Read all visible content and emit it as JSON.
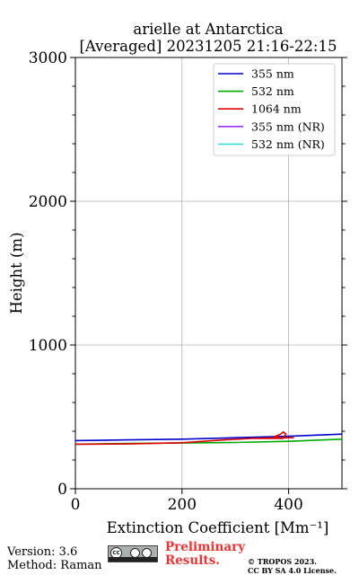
{
  "title": {
    "line1": "arielle at Antarctica",
    "line2": "[Averaged] 20231205 21:16-22:15"
  },
  "footer": {
    "version": "Version: 3.6",
    "method": "Method: Raman",
    "preliminary_line1": "Preliminary",
    "preliminary_line2": "Results.",
    "copyright_line1": "© TROPOS 2023.",
    "copyright_line2": "CC BY SA 4.0 License.",
    "license_badge": "cc-by-sa-icon",
    "preliminary_color": "#f03232"
  },
  "chart_data": {
    "type": "line",
    "title": "arielle at Antarctica [Averaged] 20231205 21:16-22:15",
    "xlabel": "Extinction Coefficient [Mm⁻¹]",
    "ylabel": "Height (m)",
    "xlim": [
      0,
      500
    ],
    "ylim": [
      0,
      3000
    ],
    "xticks": [
      "0",
      "200",
      "400"
    ],
    "yticks": [
      "0",
      "1000",
      "2000",
      "3000"
    ],
    "grid": true,
    "legend_position": "top-right",
    "series": [
      {
        "name": "355 nm",
        "color": "#0000cc",
        "x": [
          0,
          100,
          200,
          300,
          400,
          500
        ],
        "y": [
          335,
          340,
          345,
          355,
          365,
          380
        ]
      },
      {
        "name": "532 nm",
        "color": "#00aa00",
        "x": [
          0,
          100,
          200,
          300,
          400,
          500
        ],
        "y": [
          310,
          315,
          318,
          322,
          330,
          345
        ]
      },
      {
        "name": "1064 nm",
        "color": "#dd0000",
        "x": [
          0,
          100,
          200,
          280,
          330,
          390,
          395,
          390,
          385,
          375,
          385,
          330,
          410
        ],
        "y": [
          310,
          312,
          320,
          340,
          350,
          350,
          380,
          395,
          380,
          365,
          355,
          350,
          355
        ]
      },
      {
        "name": "355 nm (NR)",
        "color": "#9933ff",
        "x": [],
        "y": []
      },
      {
        "name": "532 nm (NR)",
        "color": "#33e0d0",
        "x": [],
        "y": []
      }
    ]
  }
}
